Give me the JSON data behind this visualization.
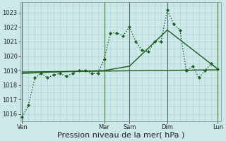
{
  "background_color": "#cce8e8",
  "grid_color": "#aacfcf",
  "line_color": "#1a5c1a",
  "day_line_color": "#4a7a4a",
  "xlabel": "Pression niveau de la mer( hPa )",
  "xlabel_fontsize": 8,
  "ylim": [
    1015.5,
    1023.7
  ],
  "yticks": [
    1016,
    1017,
    1018,
    1019,
    1020,
    1021,
    1022,
    1023
  ],
  "xtick_labels": [
    "Ven",
    "",
    "Mar",
    "Sam",
    "",
    "Dim",
    "",
    "Lun"
  ],
  "xtick_positions": [
    0,
    8,
    13,
    17,
    20,
    23,
    27,
    31
  ],
  "day_lines": [
    0,
    13,
    17,
    23,
    31
  ],
  "xlim": [
    -0.3,
    31.5
  ],
  "series_main": {
    "x": [
      0,
      1,
      2,
      3,
      4,
      5,
      6,
      7,
      8,
      9,
      10,
      11,
      12,
      13,
      14,
      15,
      16,
      17,
      18,
      19,
      20,
      21,
      22,
      23,
      24,
      25,
      26,
      27,
      28,
      29,
      30,
      31
    ],
    "y": [
      1015.8,
      1016.6,
      1018.5,
      1018.8,
      1018.5,
      1018.7,
      1018.8,
      1018.6,
      1018.8,
      1019.0,
      1019.0,
      1018.8,
      1018.8,
      1019.8,
      1021.6,
      1021.6,
      1021.4,
      1022.0,
      1021.0,
      1020.4,
      1020.3,
      1021.0,
      1021.0,
      1023.2,
      1022.2,
      1021.8,
      1019.0,
      1019.3,
      1018.5,
      1019.0,
      1019.5,
      1019.1
    ],
    "linewidth": 1.0,
    "markersize": 2.2
  },
  "series_smooth": {
    "x": [
      0,
      5,
      13,
      17,
      23,
      31
    ],
    "y": [
      1018.8,
      1018.9,
      1019.0,
      1019.3,
      1021.8,
      1019.1
    ],
    "linewidth": 1.0
  },
  "series_trend": {
    "x": [
      0,
      31
    ],
    "y": [
      1018.9,
      1019.05
    ],
    "linewidth": 1.0
  }
}
